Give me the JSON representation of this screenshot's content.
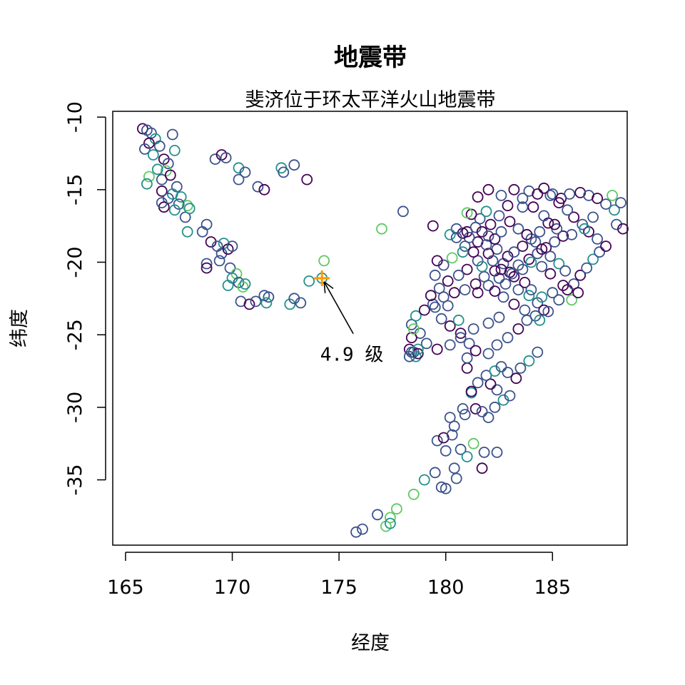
{
  "chart_data": {
    "type": "scatter",
    "title": "地震带",
    "subtitle": "斐济位于环太平洋火山地震带",
    "xlabel": "经度",
    "ylabel": "纬度",
    "xlim": [
      164.4,
      188.5
    ],
    "ylim": [
      -39.5,
      -9.6
    ],
    "xticks": [
      165,
      170,
      175,
      180,
      185
    ],
    "yticks": [
      -10,
      -15,
      -20,
      -25,
      -30,
      -35
    ],
    "grid": false,
    "legend": "none",
    "marker": "open-circle",
    "color_scale": [
      "#440154",
      "#3b528b",
      "#21918c",
      "#5ec962"
    ],
    "points": [
      [
        165.8,
        -10.8,
        0
      ],
      [
        166.0,
        -10.9,
        1
      ],
      [
        166.2,
        -11.1,
        1
      ],
      [
        166.4,
        -11.5,
        2
      ],
      [
        166.1,
        -11.8,
        0
      ],
      [
        165.9,
        -12.2,
        1
      ],
      [
        166.3,
        -12.6,
        2
      ],
      [
        166.6,
        -12.0,
        1
      ],
      [
        166.8,
        -12.9,
        0
      ],
      [
        167.0,
        -13.2,
        1
      ],
      [
        167.2,
        -11.2,
        1
      ],
      [
        167.3,
        -12.3,
        2
      ],
      [
        166.9,
        -13.7,
        3
      ],
      [
        166.5,
        -13.6,
        2
      ],
      [
        166.1,
        -14.1,
        3
      ],
      [
        166.0,
        -14.6,
        2
      ],
      [
        166.7,
        -14.3,
        1
      ],
      [
        167.1,
        -14.0,
        0
      ],
      [
        167.4,
        -14.8,
        1
      ],
      [
        167.2,
        -15.3,
        2
      ],
      [
        166.7,
        -15.1,
        0
      ],
      [
        167.0,
        -15.6,
        1
      ],
      [
        167.6,
        -15.5,
        2
      ],
      [
        167.9,
        -16.1,
        3
      ],
      [
        167.5,
        -16.0,
        1
      ],
      [
        166.8,
        -16.2,
        0
      ],
      [
        166.7,
        -15.9,
        1
      ],
      [
        167.3,
        -16.4,
        2
      ],
      [
        167.8,
        -16.9,
        1
      ],
      [
        168.0,
        -16.3,
        2
      ],
      [
        167.9,
        -17.9,
        2
      ],
      [
        168.6,
        -17.9,
        1
      ],
      [
        168.8,
        -17.4,
        1
      ],
      [
        169.0,
        -18.6,
        0
      ],
      [
        169.3,
        -18.9,
        1
      ],
      [
        169.6,
        -18.7,
        2
      ],
      [
        169.5,
        -19.4,
        1
      ],
      [
        169.8,
        -19.1,
        0
      ],
      [
        170.0,
        -18.9,
        1
      ],
      [
        169.4,
        -19.9,
        1
      ],
      [
        168.8,
        -20.1,
        1
      ],
      [
        168.8,
        -20.4,
        0
      ],
      [
        169.9,
        -20.4,
        1
      ],
      [
        170.2,
        -20.8,
        3
      ],
      [
        170.0,
        -21.1,
        2
      ],
      [
        169.8,
        -21.6,
        2
      ],
      [
        170.3,
        -21.4,
        1
      ],
      [
        170.5,
        -21.7,
        3
      ],
      [
        170.6,
        -21.5,
        2
      ],
      [
        170.4,
        -22.7,
        1
      ],
      [
        170.8,
        -22.9,
        0
      ],
      [
        171.1,
        -22.7,
        1
      ],
      [
        171.5,
        -22.3,
        1
      ],
      [
        171.7,
        -22.4,
        1
      ],
      [
        171.6,
        -22.8,
        2
      ],
      [
        172.7,
        -22.9,
        2
      ],
      [
        173.2,
        -22.8,
        1
      ],
      [
        172.9,
        -22.5,
        1
      ],
      [
        173.6,
        -21.3,
        2
      ],
      [
        169.2,
        -12.9,
        1
      ],
      [
        169.5,
        -12.6,
        0
      ],
      [
        169.7,
        -12.8,
        1
      ],
      [
        170.3,
        -13.5,
        2
      ],
      [
        170.6,
        -13.8,
        1
      ],
      [
        170.3,
        -14.3,
        1
      ],
      [
        171.2,
        -14.8,
        1
      ],
      [
        171.5,
        -15.0,
        0
      ],
      [
        172.3,
        -13.5,
        2
      ],
      [
        172.4,
        -13.8,
        1
      ],
      [
        172.9,
        -13.3,
        1
      ],
      [
        173.5,
        -14.3,
        0
      ],
      [
        174.2,
        -21.1,
        2
      ],
      [
        174.3,
        -19.9,
        3
      ],
      [
        177.0,
        -17.7,
        3
      ],
      [
        178.0,
        -16.5,
        1
      ],
      [
        176.8,
        -37.4,
        1
      ],
      [
        175.8,
        -38.6,
        1
      ],
      [
        176.1,
        -38.4,
        1
      ],
      [
        177.2,
        -38.2,
        3
      ],
      [
        177.4,
        -37.6,
        3
      ],
      [
        177.4,
        -38.0,
        2
      ],
      [
        177.7,
        -37.0,
        3
      ],
      [
        178.5,
        -36.0,
        3
      ],
      [
        179.0,
        -35.0,
        2
      ],
      [
        179.5,
        -34.5,
        1
      ],
      [
        179.8,
        -35.5,
        1
      ],
      [
        180.0,
        -35.6,
        1
      ],
      [
        180.5,
        -34.9,
        1
      ],
      [
        180.4,
        -34.2,
        1
      ],
      [
        180.0,
        -33.0,
        1
      ],
      [
        179.6,
        -32.3,
        1
      ],
      [
        179.9,
        -32.1,
        0
      ],
      [
        180.3,
        -31.9,
        1
      ],
      [
        180.7,
        -32.9,
        1
      ],
      [
        181.0,
        -33.4,
        2
      ],
      [
        181.3,
        -32.5,
        3
      ],
      [
        181.8,
        -33.1,
        1
      ],
      [
        181.7,
        -34.2,
        0
      ],
      [
        182.4,
        -33.1,
        1
      ],
      [
        180.4,
        -31.3,
        1
      ],
      [
        180.9,
        -30.5,
        1
      ],
      [
        181.4,
        -30.1,
        0
      ],
      [
        181.7,
        -30.3,
        1
      ],
      [
        182.0,
        -30.7,
        1
      ],
      [
        182.3,
        -30.0,
        1
      ],
      [
        182.7,
        -29.5,
        2
      ],
      [
        183.0,
        -29.2,
        1
      ],
      [
        182.4,
        -28.8,
        1
      ],
      [
        182.1,
        -28.4,
        0
      ],
      [
        181.9,
        -27.8,
        1
      ],
      [
        182.3,
        -27.5,
        2
      ],
      [
        182.6,
        -27.2,
        1
      ],
      [
        182.9,
        -27.6,
        1
      ],
      [
        183.3,
        -28.0,
        0
      ],
      [
        183.5,
        -27.3,
        1
      ],
      [
        183.9,
        -26.8,
        2
      ],
      [
        184.3,
        -26.2,
        1
      ],
      [
        181.0,
        -27.3,
        0
      ],
      [
        181.5,
        -28.3,
        1
      ],
      [
        181.2,
        -29.0,
        2
      ],
      [
        180.8,
        -30.1,
        1
      ],
      [
        180.2,
        -30.7,
        1
      ],
      [
        181.2,
        -28.9,
        0
      ],
      [
        182.0,
        -26.3,
        1
      ],
      [
        182.4,
        -25.7,
        1
      ],
      [
        182.9,
        -25.2,
        1
      ],
      [
        183.4,
        -24.6,
        0
      ],
      [
        182.5,
        -23.8,
        1
      ],
      [
        182.0,
        -24.2,
        1
      ],
      [
        181.3,
        -24.6,
        1
      ],
      [
        180.7,
        -24.9,
        0
      ],
      [
        180.2,
        -25.7,
        1
      ],
      [
        179.6,
        -26.0,
        0
      ],
      [
        179.1,
        -25.6,
        1
      ],
      [
        178.8,
        -24.9,
        1
      ],
      [
        178.4,
        -24.3,
        1
      ],
      [
        178.6,
        -23.7,
        2
      ],
      [
        179.0,
        -23.3,
        0
      ],
      [
        179.4,
        -22.9,
        1
      ],
      [
        179.9,
        -22.4,
        1
      ],
      [
        180.4,
        -22.1,
        0
      ],
      [
        180.9,
        -21.9,
        1
      ],
      [
        181.4,
        -21.5,
        0
      ],
      [
        181.8,
        -21.0,
        1
      ],
      [
        182.3,
        -20.6,
        0
      ],
      [
        182.7,
        -20.1,
        1
      ],
      [
        182.9,
        -19.6,
        0
      ],
      [
        182.4,
        -19.1,
        1
      ],
      [
        182.0,
        -19.4,
        0
      ],
      [
        181.5,
        -19.9,
        1
      ],
      [
        181.0,
        -20.5,
        0
      ],
      [
        180.6,
        -20.9,
        1
      ],
      [
        180.1,
        -21.3,
        0
      ],
      [
        179.7,
        -21.8,
        1
      ],
      [
        179.3,
        -22.3,
        0
      ],
      [
        179.5,
        -23.1,
        1
      ],
      [
        179.8,
        -23.9,
        1
      ],
      [
        180.2,
        -24.4,
        0
      ],
      [
        180.7,
        -25.2,
        1
      ],
      [
        181.1,
        -25.6,
        1
      ],
      [
        181.4,
        -26.1,
        0
      ],
      [
        181.0,
        -26.6,
        1
      ],
      [
        180.6,
        -24.0,
        2
      ],
      [
        180.1,
        -23.0,
        1
      ],
      [
        181.5,
        -22.1,
        0
      ],
      [
        182.0,
        -21.6,
        1
      ],
      [
        182.5,
        -21.1,
        1
      ],
      [
        183.0,
        -20.7,
        0
      ],
      [
        183.4,
        -20.2,
        1
      ],
      [
        183.9,
        -19.8,
        0
      ],
      [
        184.3,
        -19.4,
        1
      ],
      [
        184.7,
        -19.0,
        0
      ],
      [
        185.1,
        -18.6,
        1
      ],
      [
        185.5,
        -18.2,
        0
      ],
      [
        185.2,
        -17.7,
        1
      ],
      [
        184.8,
        -17.3,
        0
      ],
      [
        184.4,
        -17.9,
        1
      ],
      [
        184.0,
        -18.4,
        1
      ],
      [
        183.6,
        -18.9,
        0
      ],
      [
        183.2,
        -19.3,
        1
      ],
      [
        181.0,
        -17.9,
        0
      ],
      [
        181.4,
        -17.6,
        1
      ],
      [
        181.7,
        -17.9,
        0
      ],
      [
        182.0,
        -18.2,
        1
      ],
      [
        181.5,
        -18.6,
        0
      ],
      [
        181.1,
        -18.3,
        1
      ],
      [
        180.8,
        -18.0,
        0
      ],
      [
        180.5,
        -17.7,
        1
      ],
      [
        180.2,
        -18.1,
        2
      ],
      [
        180.9,
        -18.9,
        1
      ],
      [
        181.3,
        -19.3,
        0
      ],
      [
        181.9,
        -18.8,
        1
      ],
      [
        182.3,
        -18.4,
        0
      ],
      [
        182.6,
        -17.9,
        1
      ],
      [
        182.1,
        -17.4,
        0
      ],
      [
        181.6,
        -17.0,
        1
      ],
      [
        181.2,
        -16.7,
        0
      ],
      [
        181.9,
        -16.5,
        2
      ],
      [
        182.5,
        -16.8,
        1
      ],
      [
        183.0,
        -17.2,
        0
      ],
      [
        183.4,
        -17.7,
        1
      ],
      [
        183.8,
        -18.1,
        0
      ],
      [
        184.2,
        -18.6,
        1
      ],
      [
        184.5,
        -19.1,
        0
      ],
      [
        184.9,
        -19.6,
        1
      ],
      [
        185.3,
        -20.1,
        2
      ],
      [
        185.6,
        -20.6,
        1
      ],
      [
        184.9,
        -20.8,
        0
      ],
      [
        184.5,
        -20.3,
        1
      ],
      [
        184.0,
        -20.0,
        2
      ],
      [
        183.6,
        -20.5,
        1
      ],
      [
        183.2,
        -21.0,
        0
      ],
      [
        182.8,
        -21.5,
        1
      ],
      [
        183.4,
        -21.9,
        1
      ],
      [
        183.9,
        -22.3,
        2
      ],
      [
        184.3,
        -22.8,
        1
      ],
      [
        184.6,
        -23.3,
        0
      ],
      [
        184.2,
        -23.7,
        1
      ],
      [
        183.7,
        -23.3,
        1
      ],
      [
        183.2,
        -22.9,
        0
      ],
      [
        182.7,
        -22.4,
        1
      ],
      [
        182.3,
        -22.0,
        0
      ],
      [
        183.8,
        -24.0,
        1
      ],
      [
        184.4,
        -24.0,
        2
      ],
      [
        184.8,
        -23.4,
        1
      ],
      [
        185.3,
        -22.6,
        1
      ],
      [
        185.7,
        -21.9,
        0
      ],
      [
        186.0,
        -21.5,
        1
      ],
      [
        186.3,
        -20.9,
        0
      ],
      [
        186.6,
        -20.4,
        1
      ],
      [
        186.9,
        -19.8,
        2
      ],
      [
        187.2,
        -19.3,
        1
      ],
      [
        187.5,
        -18.9,
        0
      ],
      [
        187.1,
        -18.4,
        1
      ],
      [
        186.7,
        -17.9,
        0
      ],
      [
        186.4,
        -17.4,
        1
      ],
      [
        186.0,
        -16.9,
        0
      ],
      [
        185.7,
        -16.4,
        1
      ],
      [
        185.3,
        -15.9,
        0
      ],
      [
        184.9,
        -15.4,
        1
      ],
      [
        184.6,
        -14.9,
        0
      ],
      [
        185.0,
        -15.3,
        1
      ],
      [
        185.4,
        -15.6,
        0
      ],
      [
        185.8,
        -15.3,
        1
      ],
      [
        186.3,
        -15.2,
        0
      ],
      [
        186.7,
        -15.4,
        1
      ],
      [
        187.1,
        -15.6,
        0
      ],
      [
        187.5,
        -16.0,
        1
      ],
      [
        187.9,
        -16.4,
        2
      ],
      [
        188.2,
        -15.9,
        1
      ],
      [
        187.8,
        -15.4,
        3
      ],
      [
        188.0,
        -17.4,
        1
      ],
      [
        188.3,
        -17.7,
        0
      ],
      [
        186.9,
        -16.9,
        1
      ],
      [
        186.5,
        -17.7,
        2
      ],
      [
        185.9,
        -18.1,
        1
      ],
      [
        185.1,
        -17.4,
        0
      ],
      [
        184.6,
        -16.8,
        1
      ],
      [
        184.1,
        -16.2,
        0
      ],
      [
        183.6,
        -15.6,
        1
      ],
      [
        183.2,
        -15.0,
        0
      ],
      [
        183.9,
        -15.1,
        1
      ],
      [
        184.3,
        -15.3,
        0
      ],
      [
        182.0,
        -15.0,
        0
      ],
      [
        182.6,
        -15.4,
        1
      ],
      [
        182.9,
        -16.1,
        0
      ],
      [
        183.6,
        -16.2,
        1
      ],
      [
        181.5,
        -15.5,
        0
      ],
      [
        181.0,
        -16.6,
        3
      ],
      [
        180.5,
        -18.3,
        1
      ],
      [
        180.3,
        -19.7,
        3
      ],
      [
        179.9,
        -20.2,
        1
      ],
      [
        179.5,
        -20.9,
        1
      ],
      [
        179.4,
        -17.5,
        0
      ],
      [
        179.6,
        -19.9,
        0
      ],
      [
        180.8,
        -19.3,
        2
      ],
      [
        181.7,
        -20.3,
        2
      ],
      [
        182.2,
        -19.9,
        1
      ],
      [
        182.6,
        -20.5,
        0
      ],
      [
        183.1,
        -20.8,
        1
      ],
      [
        183.7,
        -21.4,
        0
      ],
      [
        184.0,
        -21.9,
        1
      ],
      [
        184.5,
        -22.4,
        2
      ],
      [
        185.0,
        -22.1,
        1
      ],
      [
        185.5,
        -21.6,
        0
      ],
      [
        185.9,
        -22.6,
        3
      ],
      [
        186.2,
        -22.1,
        0
      ],
      [
        178.3,
        -26.0,
        0
      ],
      [
        178.4,
        -26.2,
        1
      ],
      [
        178.6,
        -26.5,
        2
      ],
      [
        178.5,
        -26.2,
        1
      ],
      [
        178.7,
        -26.3,
        0
      ],
      [
        178.3,
        -26.5,
        1
      ],
      [
        178.7,
        -26.0,
        2
      ],
      [
        178.4,
        -25.2,
        0
      ],
      [
        178.5,
        -24.6,
        3
      ]
    ],
    "highlight": {
      "x": 174.2,
      "y": -21.1,
      "label": "4.9 级",
      "color": "#ff9900",
      "marker": "plus",
      "label_at": [
        175.6,
        -26.4
      ]
    }
  }
}
